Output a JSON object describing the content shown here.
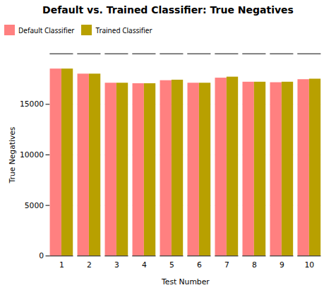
{
  "chart_data": {
    "type": "bar",
    "title": "Default vs. Trained Classifier: True Negatives",
    "xlabel": "Test Number",
    "ylabel": "True Negatives",
    "categories": [
      1,
      2,
      3,
      4,
      5,
      6,
      7,
      8,
      9,
      10
    ],
    "series": [
      {
        "name": "Default Classifier",
        "color": "#FF8080",
        "values": [
          18500,
          18000,
          17100,
          17050,
          17350,
          17100,
          17600,
          17200,
          17150,
          17450
        ]
      },
      {
        "name": "Trained Classifier",
        "color": "#B8A000",
        "values": [
          18500,
          18000,
          17100,
          17050,
          17400,
          17100,
          17700,
          17200,
          17200,
          17500
        ]
      }
    ],
    "ylim": [
      0,
      20000
    ],
    "yticks": [
      0,
      5000,
      10000,
      15000
    ],
    "grid": true,
    "legend": "top"
  }
}
